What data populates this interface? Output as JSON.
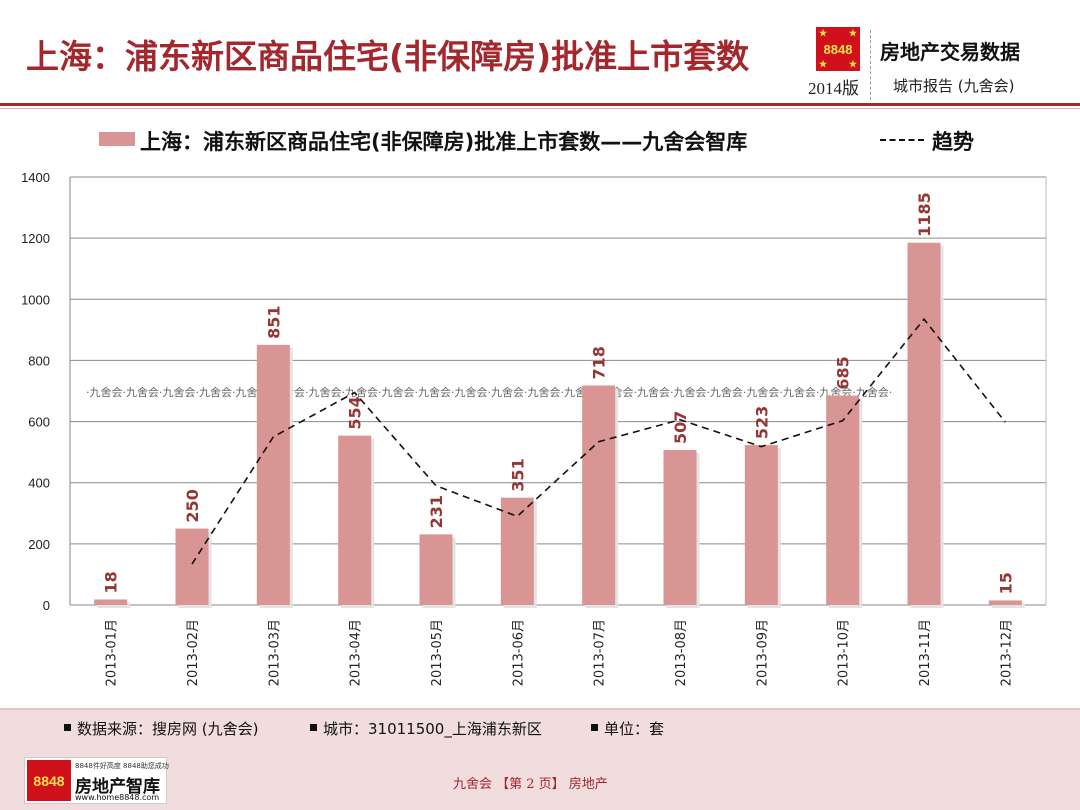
{
  "header": {
    "title": "上海：浦东新区商品住宅(非保障房)批准上市套数",
    "logo_text": "8848",
    "edition": "2014版",
    "brand": "房地产交易数据",
    "subbrand": "城市报告 (九舍会)"
  },
  "legend": {
    "series_label": "上海：浦东新区商品住宅(非保障房)批准上市套数——九舍会智库",
    "trend_label": "趋势"
  },
  "watermark": "·九舍会·九舍会·九舍会·九舍会·九舍会·九舍会·九舍会·九舍会·九舍会·九舍会·九舍会·九舍会·九舍会·九舍会·九舍会·九舍会·九舍会·九舍会·九舍会·九舍会·九舍会·九舍会·",
  "chart_data": {
    "type": "bar",
    "categories": [
      "2013-01月",
      "2013-02月",
      "2013-03月",
      "2013-04月",
      "2013-05月",
      "2013-06月",
      "2013-07月",
      "2013-08月",
      "2013-09月",
      "2013-10月",
      "2013-11月",
      "2013-12月"
    ],
    "series": [
      {
        "name": "上海：浦东新区商品住宅(非保障房)批准上市套数——九舍会智库",
        "values": [
          18,
          250,
          851,
          554,
          231,
          351,
          718,
          507,
          523,
          685,
          1185,
          15
        ]
      }
    ],
    "trend": {
      "name": "趋势",
      "values": [
        null,
        134,
        550,
        695,
        390,
        290,
        534,
        606,
        518,
        603,
        935,
        598
      ]
    },
    "yticks": [
      0,
      200,
      400,
      600,
      800,
      1000,
      1200,
      1400
    ],
    "ylim": [
      0,
      1400
    ],
    "grid": true,
    "colors": {
      "bar": "#d99594",
      "label": "#963634",
      "trend": "#111111",
      "accent": "#a3272c"
    }
  },
  "footer": {
    "source": "数据来源：搜房网 (九舍会)",
    "city": "城市：31011500_上海浦东新区",
    "unit": "单位：套",
    "logo_tag": "8848件好高度 8848助您成功",
    "logo_name": "房地产智库",
    "logo_url": "www.home8848.com",
    "page_text": "九舍会  【第 2 页】  房地产"
  }
}
